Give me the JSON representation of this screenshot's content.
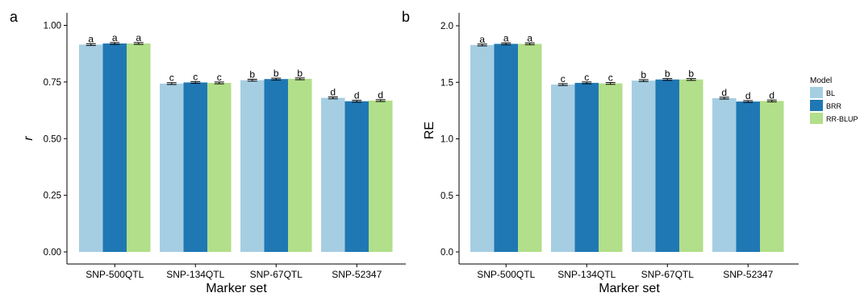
{
  "panels": [
    {
      "label": "a",
      "chart_data": {
        "type": "bar",
        "xlabel": "Marker set",
        "ylabel": "r",
        "categories": [
          "SNP-500QTL",
          "SNP-134QTL",
          "SNP-67QTL",
          "SNP-52347"
        ],
        "ylim": [
          0,
          1.0
        ],
        "yticks": [
          "0.00",
          "0.25",
          "0.50",
          "0.75",
          "1.00"
        ],
        "series": [
          {
            "name": "BL",
            "values": [
              0.915,
              0.743,
              0.758,
              0.68
            ],
            "errors": [
              0.004,
              0.004,
              0.004,
              0.004
            ],
            "letters": [
              "a",
              "c",
              "b",
              "d"
            ]
          },
          {
            "name": "BRR",
            "values": [
              0.92,
              0.748,
              0.763,
              0.665
            ],
            "errors": [
              0.004,
              0.004,
              0.004,
              0.004
            ],
            "letters": [
              "a",
              "c",
              "b",
              "d"
            ]
          },
          {
            "name": "RR-BLUP",
            "values": [
              0.92,
              0.746,
              0.764,
              0.668
            ],
            "errors": [
              0.004,
              0.004,
              0.004,
              0.004
            ],
            "letters": [
              "a",
              "c",
              "b",
              "d"
            ]
          }
        ]
      }
    },
    {
      "label": "b",
      "chart_data": {
        "type": "bar",
        "xlabel": "Marker set",
        "ylabel": "RE",
        "categories": [
          "SNP-500QTL",
          "SNP-134QTL",
          "SNP-67QTL",
          "SNP-52347"
        ],
        "ylim": [
          0,
          2.0
        ],
        "yticks": [
          "0.0",
          "0.5",
          "1.0",
          "1.5",
          "2.0"
        ],
        "series": [
          {
            "name": "BL",
            "values": [
              1.83,
              1.48,
              1.515,
              1.36
            ],
            "errors": [
              0.008,
              0.008,
              0.008,
              0.008
            ],
            "letters": [
              "a",
              "c",
              "b",
              "d"
            ]
          },
          {
            "name": "BRR",
            "values": [
              1.84,
              1.495,
              1.525,
              1.33
            ],
            "errors": [
              0.008,
              0.008,
              0.008,
              0.008
            ],
            "letters": [
              "a",
              "c",
              "b",
              "d"
            ]
          },
          {
            "name": "RR-BLUP",
            "values": [
              1.84,
              1.49,
              1.525,
              1.335
            ],
            "errors": [
              0.008,
              0.008,
              0.008,
              0.008
            ],
            "letters": [
              "a",
              "c",
              "b",
              "d"
            ]
          }
        ]
      }
    }
  ],
  "legend": {
    "title": "Model",
    "position": "right",
    "items": [
      "BL",
      "BRR",
      "RR-BLUP"
    ]
  },
  "colors": {
    "BL": "#a6cee3",
    "BRR": "#1f78b4",
    "RR-BLUP": "#b2df8a"
  }
}
